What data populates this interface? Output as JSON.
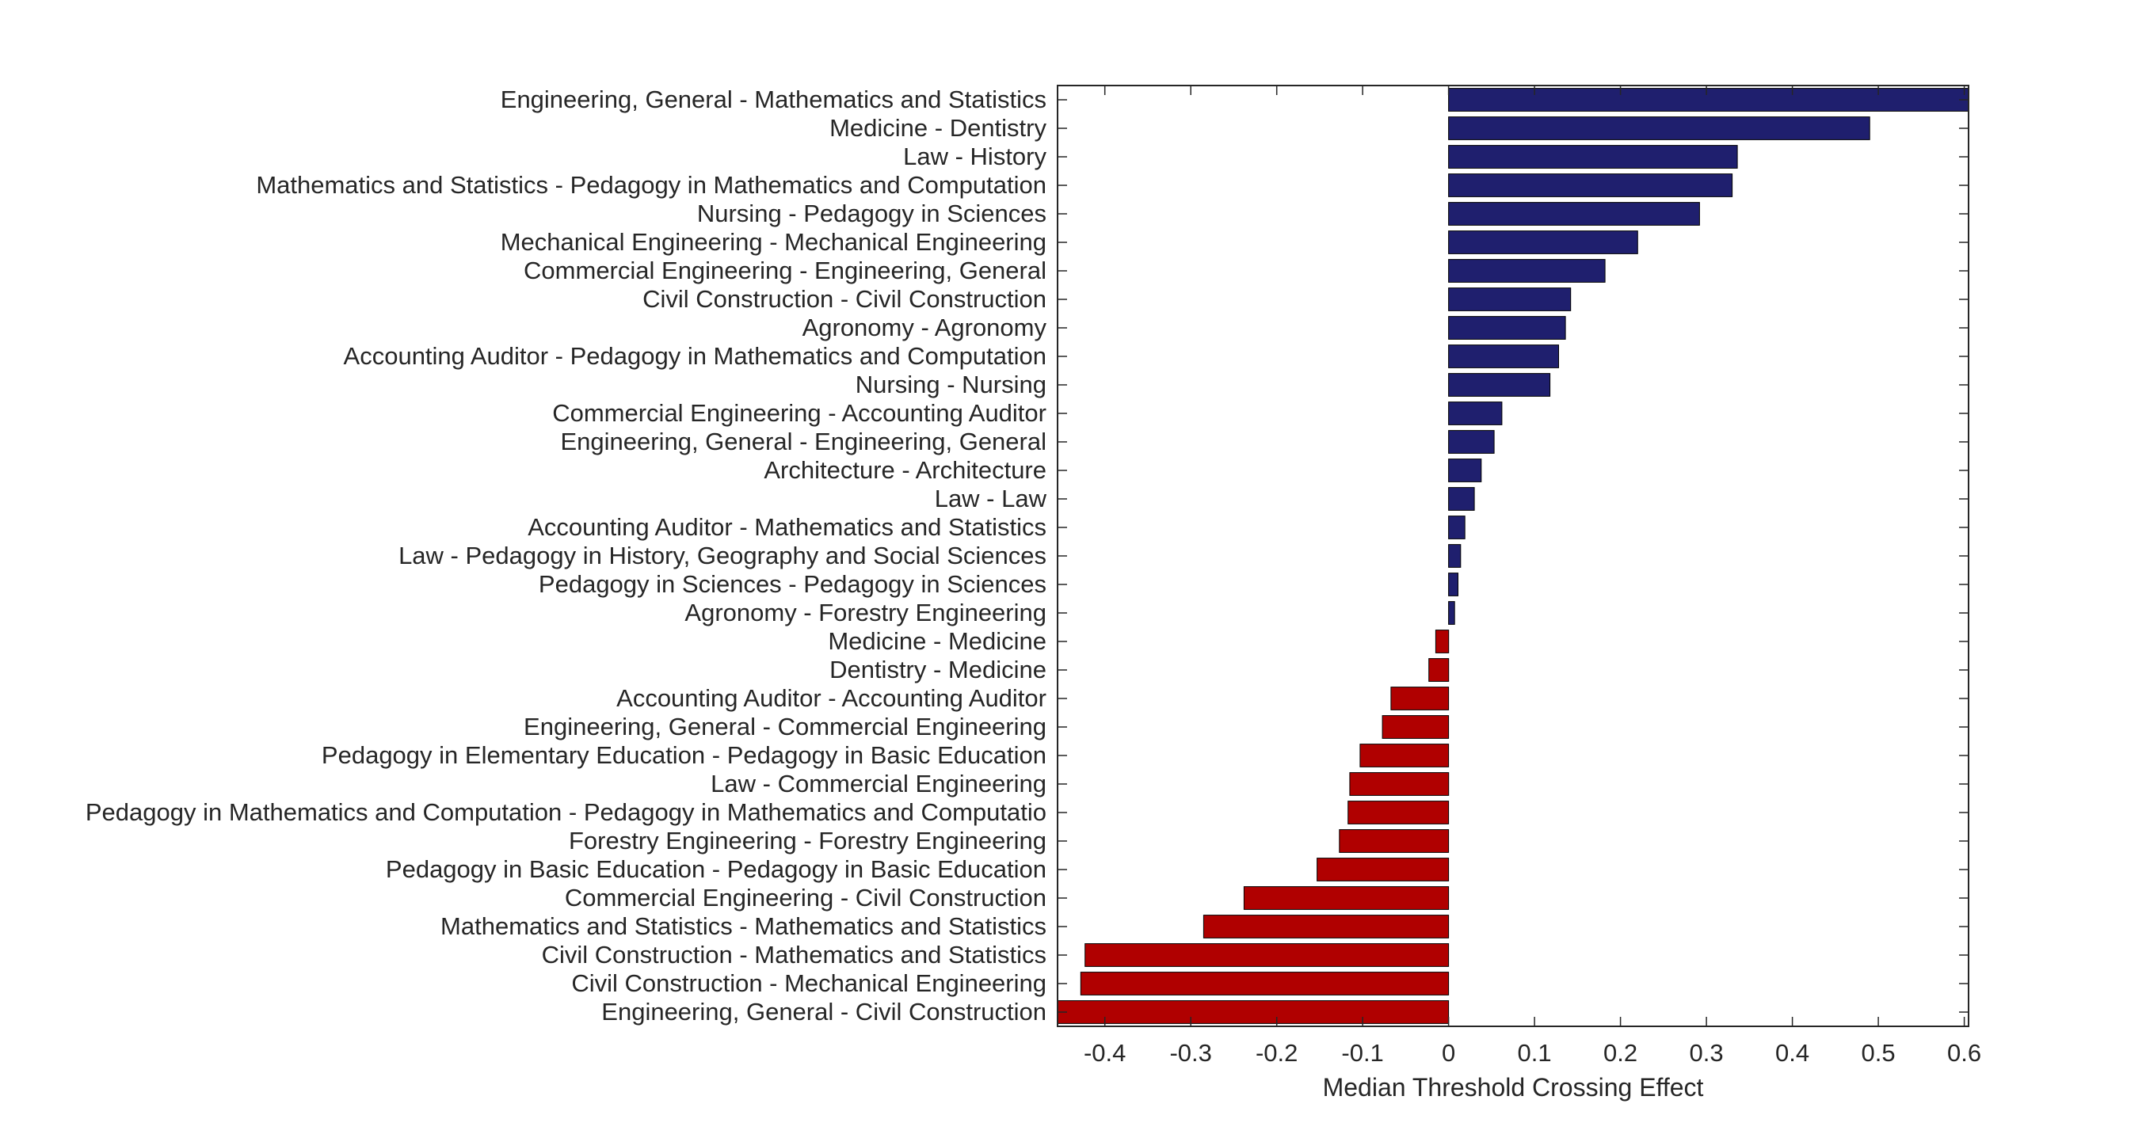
{
  "chart_data": {
    "type": "bar",
    "orientation": "horizontal",
    "title": "",
    "xlabel": "Median Threshold Crossing Effect",
    "ylabel": "",
    "xlim": [
      -0.455,
      0.605
    ],
    "xticks": [
      -0.4,
      -0.3,
      -0.2,
      -0.1,
      0,
      0.1,
      0.2,
      0.3,
      0.4,
      0.5,
      0.6
    ],
    "xtick_labels": [
      "-0.4",
      "-0.3",
      "-0.2",
      "-0.1",
      "0",
      "0.1",
      "0.2",
      "0.3",
      "0.4",
      "0.5",
      "0.6"
    ],
    "grid": false,
    "colors": {
      "positive": "#1f1f6e",
      "negative": "#b00000",
      "axis": "#262626"
    },
    "categories": [
      "Engineering, General - Mathematics and Statistics",
      "Medicine - Dentistry",
      "Law - History",
      "Mathematics and Statistics - Pedagogy in Mathematics and Computation",
      "Nursing - Pedagogy in Sciences",
      "Mechanical Engineering - Mechanical Engineering",
      "Commercial Engineering - Engineering, General",
      "Civil Construction - Civil Construction",
      "Agronomy - Agronomy",
      "Accounting Auditor - Pedagogy in Mathematics and Computation",
      "Nursing - Nursing",
      "Commercial Engineering - Accounting Auditor",
      "Engineering, General - Engineering, General",
      "Architecture - Architecture",
      "Law - Law",
      "Accounting Auditor - Mathematics and Statistics",
      "Law - Pedagogy in History, Geography and Social Sciences",
      "Pedagogy in Sciences - Pedagogy in Sciences",
      "Agronomy - Forestry Engineering",
      "Medicine - Medicine",
      "Dentistry - Medicine",
      "Accounting Auditor - Accounting Auditor",
      "Engineering, General - Commercial Engineering",
      "Pedagogy in Elementary Education - Pedagogy in Basic Education",
      "Law - Commercial Engineering",
      "Pedagogy in Mathematics and Computation - Pedagogy in Mathematics and Computatio",
      "Forestry Engineering - Forestry Engineering",
      "Pedagogy in Basic Education - Pedagogy in Basic Education",
      "Commercial Engineering - Civil Construction",
      "Mathematics and Statistics - Mathematics and Statistics",
      "Civil Construction - Mathematics and Statistics",
      "Civil Construction - Mechanical Engineering",
      "Engineering, General - Civil Construction"
    ],
    "values": [
      0.605,
      0.49,
      0.336,
      0.33,
      0.292,
      0.22,
      0.182,
      0.142,
      0.136,
      0.128,
      0.118,
      0.062,
      0.053,
      0.038,
      0.03,
      0.019,
      0.014,
      0.011,
      0.007,
      -0.015,
      -0.023,
      -0.067,
      -0.077,
      -0.103,
      -0.115,
      -0.117,
      -0.127,
      -0.153,
      -0.238,
      -0.285,
      -0.423,
      -0.428,
      -0.455
    ]
  }
}
